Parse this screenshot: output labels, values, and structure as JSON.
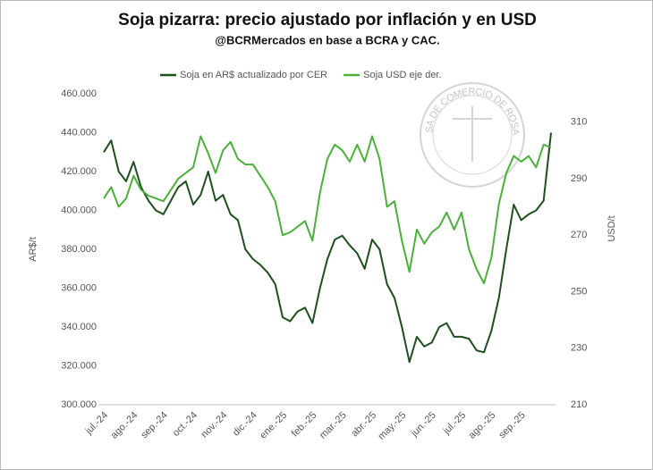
{
  "chart_data": {
    "type": "line",
    "title": "Soja pizarra: precio ajustado por inflación y en USD",
    "subtitle": "@BCRMercados en base a BCRA y CAC.",
    "watermark": "BOLSA DE COMERCIO DE ROSARIO",
    "ylabel": "AR$/t",
    "y2label": "USD/t",
    "categories": [
      "jul.-24",
      null,
      null,
      null,
      "ago.-24",
      null,
      null,
      null,
      "sep.-24",
      null,
      null,
      null,
      "oct.-24",
      null,
      null,
      null,
      "nov.-24",
      null,
      null,
      null,
      "dic.-24",
      null,
      null,
      null,
      "ene.-25",
      null,
      null,
      null,
      "feb.-25",
      null,
      null,
      null,
      "mar.-25",
      null,
      null,
      null,
      "abr.-25",
      null,
      null,
      null,
      "may.-25",
      null,
      null,
      null,
      "jun.-25",
      null,
      null,
      null,
      "jul.-25",
      null,
      null,
      null,
      "ago.-25",
      null,
      null,
      null,
      "sep.-25",
      null,
      null,
      null,
      null
    ],
    "ylim": [
      300000,
      460000
    ],
    "yticks": [
      {
        "value": 300000,
        "label": "300.000"
      },
      {
        "value": 320000,
        "label": "320.000"
      },
      {
        "value": 340000,
        "label": "340.000"
      },
      {
        "value": 360000,
        "label": "360.000"
      },
      {
        "value": 380000,
        "label": "380.000"
      },
      {
        "value": 400000,
        "label": "400.000"
      },
      {
        "value": 420000,
        "label": "420.000"
      },
      {
        "value": 440000,
        "label": "440.000"
      },
      {
        "value": 460000,
        "label": "460.000"
      }
    ],
    "y2lim": [
      210,
      320
    ],
    "y2ticks": [
      210,
      230,
      250,
      270,
      290,
      310
    ],
    "grid": false,
    "legend": "top",
    "series": [
      {
        "name": "Soja en AR$ actualizado por CER",
        "color": "#1f4e1f",
        "values": [
          430000,
          436000,
          420000,
          415000,
          425000,
          412000,
          405000,
          400000,
          398000,
          405000,
          412000,
          415000,
          403000,
          408000,
          420000,
          405000,
          408000,
          398000,
          395000,
          380000,
          375000,
          372000,
          368000,
          362000,
          345000,
          343000,
          348000,
          350000,
          342000,
          360000,
          375000,
          385000,
          387000,
          382000,
          378000,
          370000,
          385000,
          380000,
          362000,
          355000,
          340000,
          322000,
          335000,
          330000,
          332000,
          340000,
          342000,
          335000,
          335000,
          334000,
          328000,
          327000,
          338000,
          355000,
          380000,
          403000,
          395000,
          398000,
          400000,
          405000,
          440000
        ]
      },
      {
        "name": "Soja USD eje der.",
        "color": "#4caf3c",
        "axis": "y2",
        "values": [
          283,
          287,
          280,
          283,
          291,
          286,
          284,
          283,
          282,
          286,
          290,
          292,
          294,
          305,
          299,
          292,
          300,
          303,
          297,
          295,
          295,
          291,
          287,
          282,
          270,
          271,
          273,
          275,
          268,
          285,
          297,
          302,
          300,
          296,
          302,
          296,
          305,
          297,
          280,
          282,
          268,
          257,
          272,
          267,
          271,
          273,
          278,
          272,
          278,
          265,
          258,
          253,
          262,
          281,
          292,
          298,
          296,
          298,
          294,
          302,
          301
        ]
      }
    ]
  }
}
